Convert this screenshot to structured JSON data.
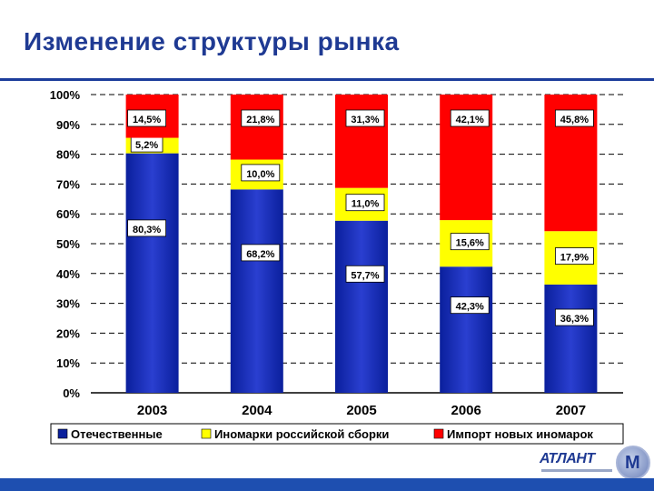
{
  "slide": {
    "title": "Изменение структуры рынка",
    "logo_text": "АТЛАНТ",
    "logo_letter": "M"
  },
  "colors": {
    "domestic": "#0a1f9c",
    "domestic_light": "#2a3fd0",
    "assembly": "#ffff00",
    "import": "#ff0000",
    "title": "#1f3a93",
    "accent_bar": "#1e4fb0"
  },
  "chart_data": {
    "type": "bar",
    "stacked": true,
    "categories": [
      "2003",
      "2004",
      "2005",
      "2006",
      "2007"
    ],
    "series": [
      {
        "name": "Отечественные",
        "color": "#0a1f9c",
        "values": [
          80.3,
          68.2,
          57.7,
          42.3,
          36.3
        ],
        "labels": [
          "80,3%",
          "68,2%",
          "57,7%",
          "42,3%",
          "36,3%"
        ]
      },
      {
        "name": "Иномарки российской сборки",
        "color": "#ffff00",
        "values": [
          5.2,
          10.0,
          11.0,
          15.6,
          17.9
        ],
        "labels": [
          "5,2%",
          "10,0%",
          "11,0%",
          "15,6%",
          "17,9%"
        ]
      },
      {
        "name": "Импорт новых иномарок",
        "color": "#ff0000",
        "values": [
          14.5,
          21.8,
          31.3,
          42.1,
          45.8
        ],
        "labels": [
          "14,5%",
          "21,8%",
          "31,3%",
          "42,1%",
          "45,8%"
        ]
      }
    ],
    "ylim": [
      0,
      100
    ],
    "yticks": [
      "0%",
      "10%",
      "20%",
      "30%",
      "40%",
      "50%",
      "60%",
      "70%",
      "80%",
      "90%",
      "100%"
    ],
    "grid": true,
    "legend": "bottom"
  }
}
